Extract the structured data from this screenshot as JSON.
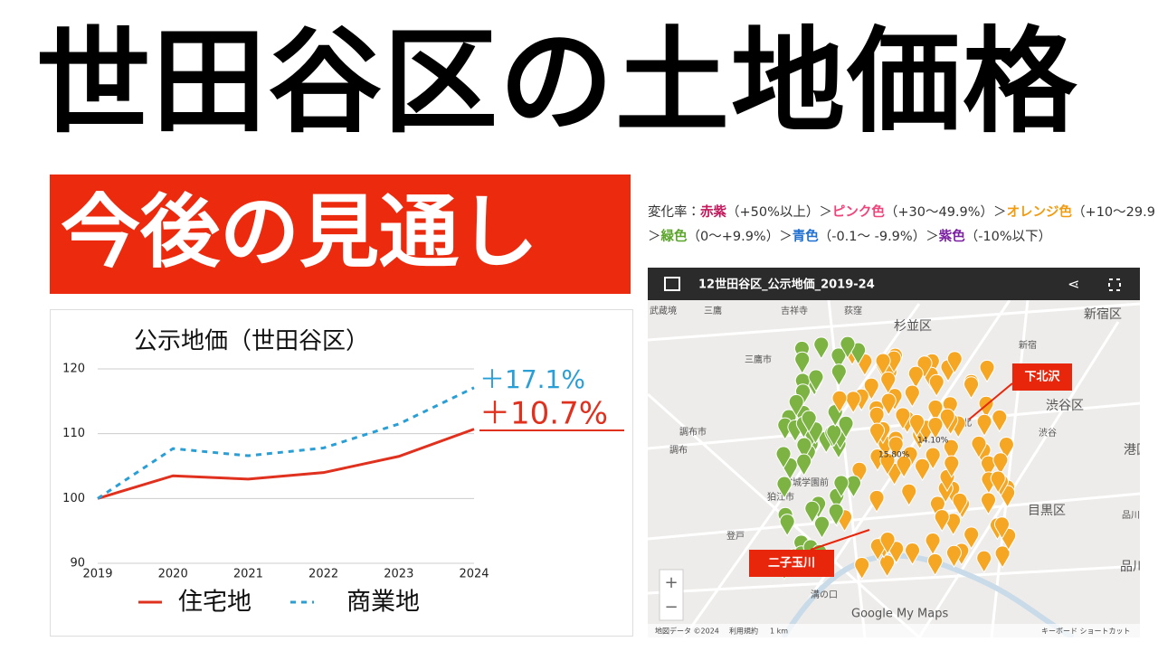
{
  "title": "世田谷区の土地価格",
  "banner": "今後の見通し",
  "chart_data": {
    "type": "line",
    "title": "公示地価（世田谷区）",
    "x": [
      2019,
      2020,
      2021,
      2022,
      2023,
      2024
    ],
    "xlim": [
      2019,
      2024
    ],
    "xticks": [
      2019,
      2020,
      2021,
      2022,
      2023,
      2024
    ],
    "ylim": [
      90,
      120
    ],
    "yticks": [
      90,
      100,
      110,
      120
    ],
    "grid": true,
    "series": [
      {
        "name": "住宅地",
        "color": "#e0301e",
        "dash": false,
        "values": [
          100,
          103.5,
          103,
          104,
          106.5,
          110.7
        ]
      },
      {
        "name": "商業地",
        "color": "#2a9fd6",
        "dash": true,
        "values": [
          100,
          107.7,
          106.6,
          107.8,
          111.5,
          117.1
        ]
      }
    ],
    "annotations": [
      "＋17.1%",
      "＋10.7%"
    ]
  },
  "rate_legend": {
    "line1": [
      "変化率：",
      "赤紫",
      "（+50%以上）＞",
      "ピンク色",
      "（+30〜49.9%）＞",
      "オレンジ色",
      "（+10〜29.9"
    ],
    "line2": [
      "＞",
      "緑色",
      "（0〜+9.9%）＞",
      "青色",
      "（-0.1〜 -9.9%）＞",
      "紫色",
      "（-10%以下）"
    ]
  },
  "map": {
    "title": "12世田谷区_公示地価_2019-24",
    "places": [
      "武蔵境",
      "三鷹",
      "吉祥寺",
      "荻窪",
      "杉並区",
      "新宿区",
      "新宿",
      "三鷹市",
      "渋谷区",
      "渋谷",
      "調布市",
      "調布",
      "成城学園前",
      "狛江市",
      "目黒区",
      "港区",
      "品川",
      "品川区",
      "登戸",
      "溝の口",
      "下北"
    ],
    "callouts": [
      "下北沢",
      "二子玉川"
    ],
    "pin_labels": [
      "15.80%",
      "14.10%"
    ],
    "footer": [
      "地図データ ©2024",
      "利用規約",
      "1 km",
      "キーボード ショートカット"
    ],
    "brand": "Google My Maps",
    "zoom": [
      "+",
      "−"
    ]
  }
}
